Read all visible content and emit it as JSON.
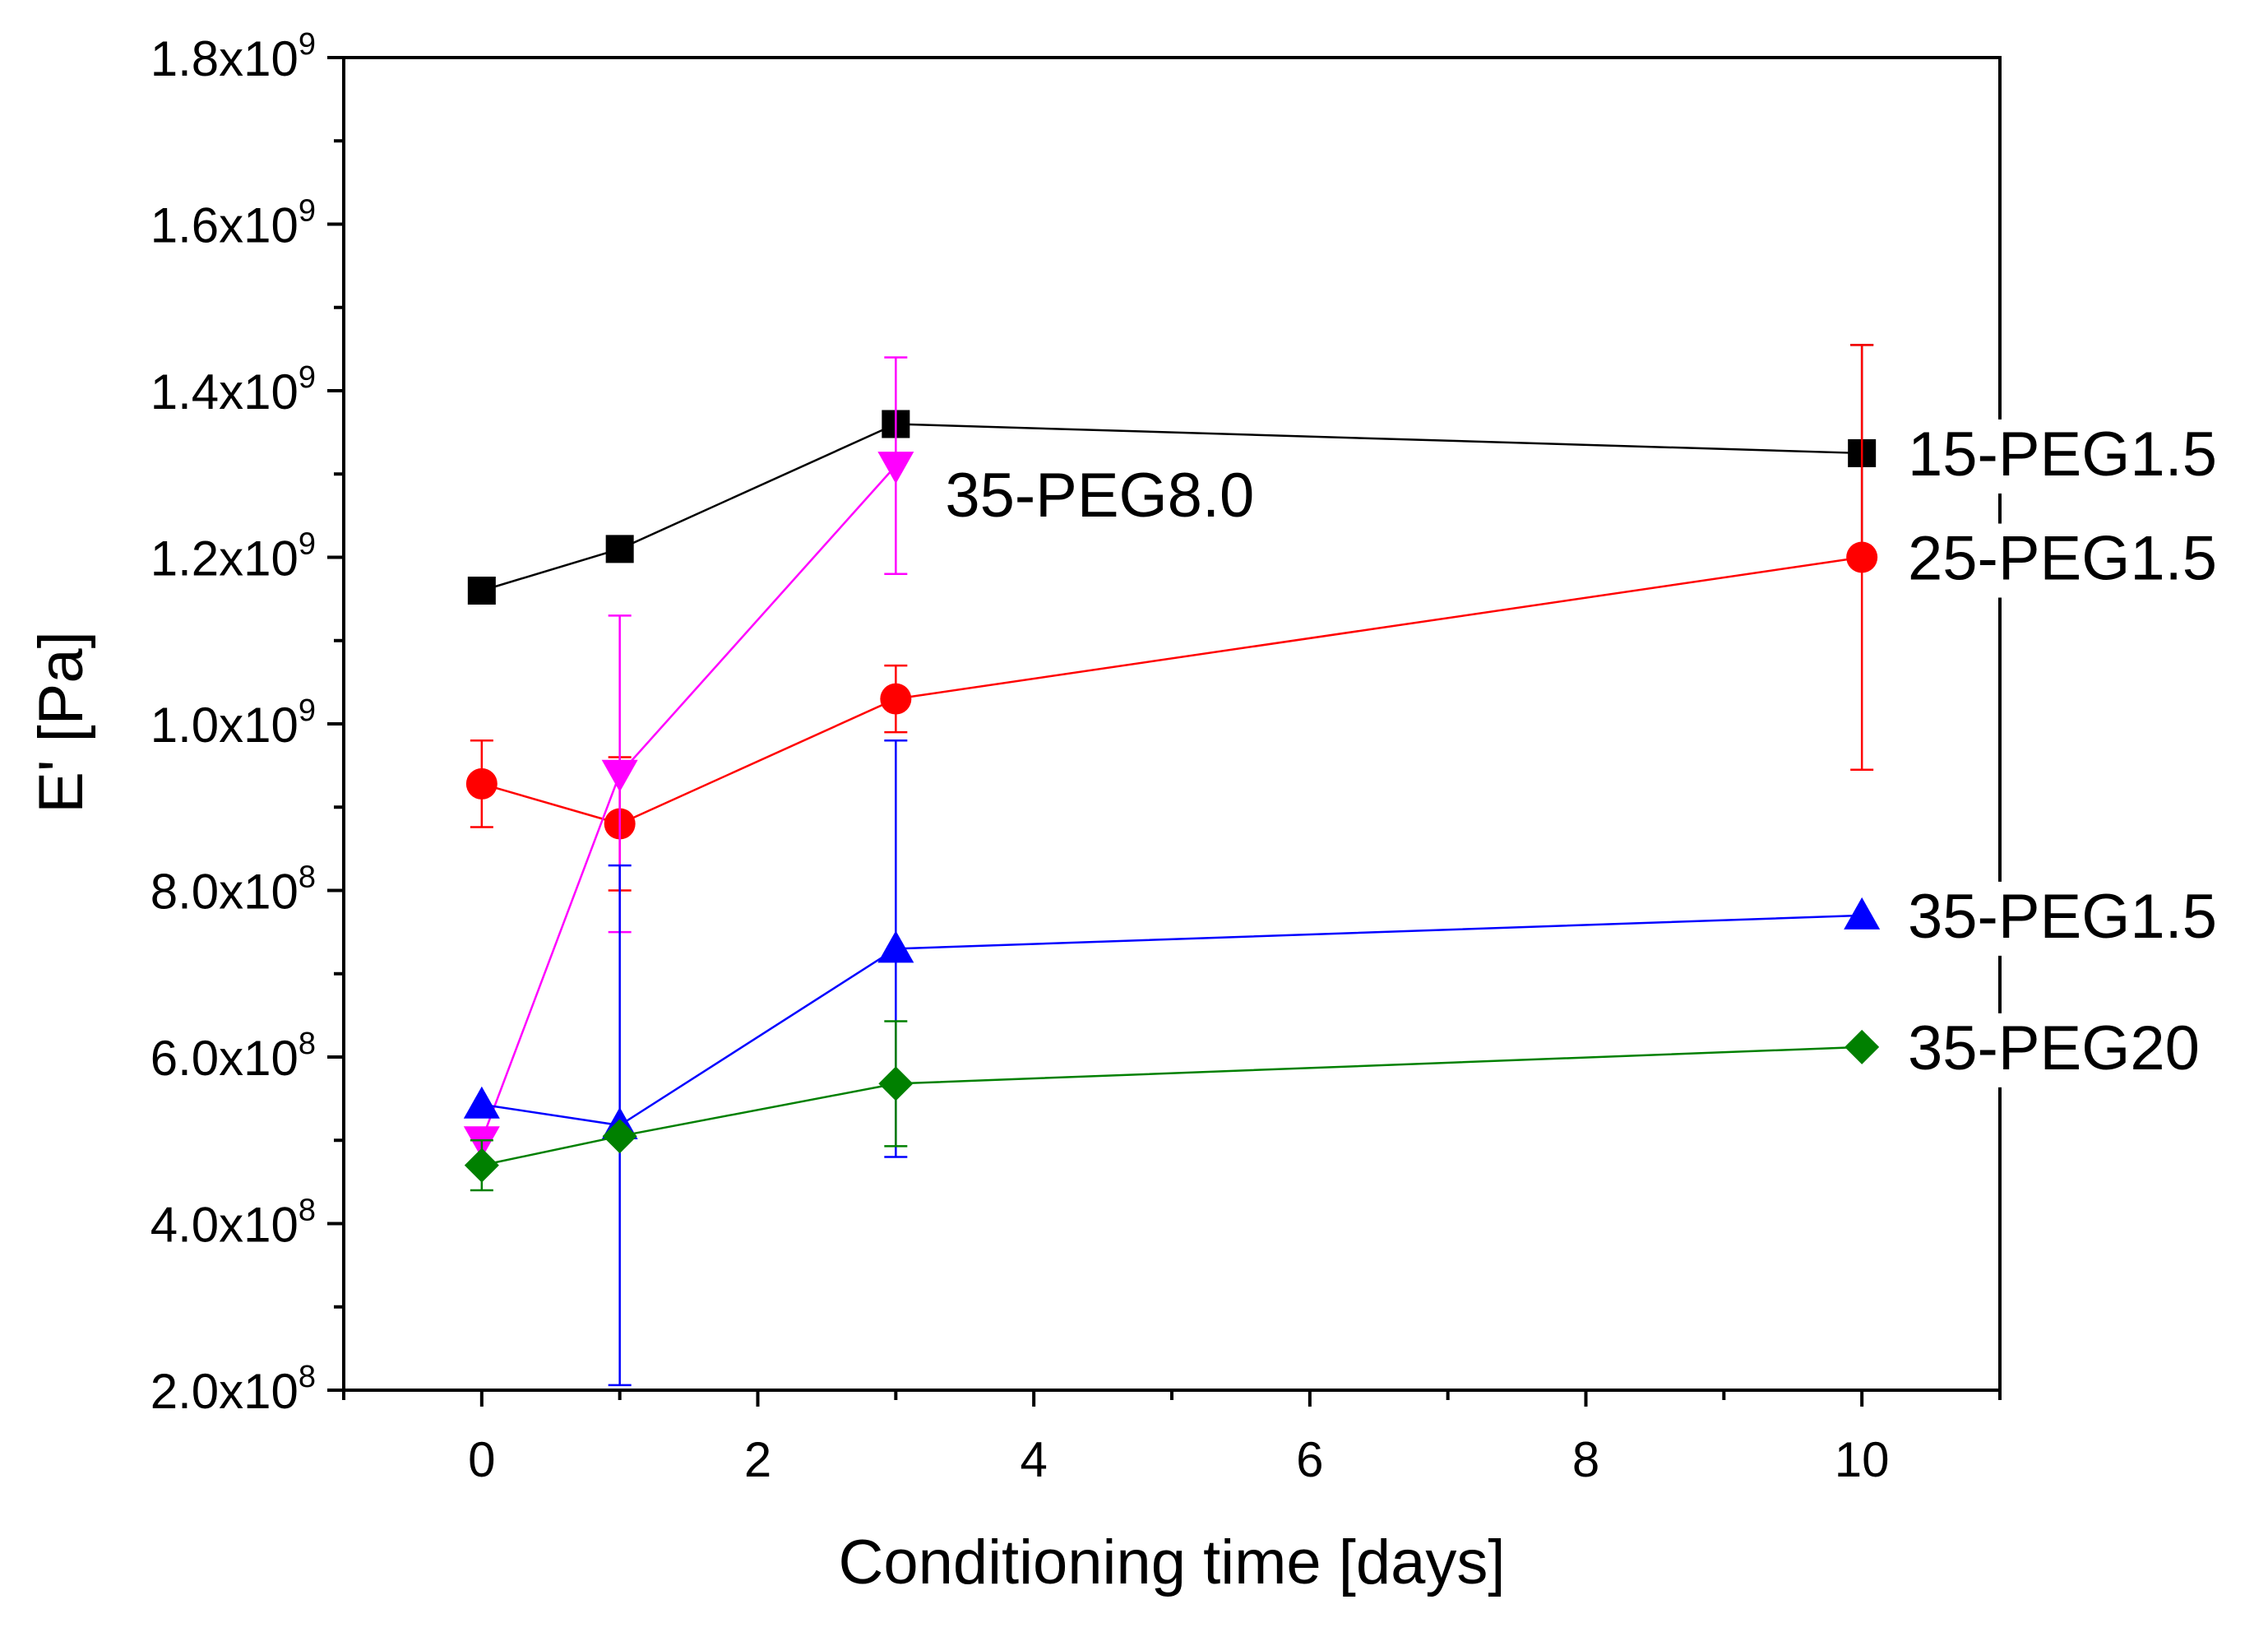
{
  "chart_data": {
    "type": "line",
    "title": "",
    "xlabel": "Conditioning time [days]",
    "ylabel": "E' [Pa]",
    "xlim": [
      -1,
      11
    ],
    "ylim": [
      200000000,
      1800000000
    ],
    "x_ticks": [
      0,
      2,
      4,
      6,
      8,
      10
    ],
    "x_tick_labels": [
      "0",
      "2",
      "4",
      "6",
      "8",
      "10"
    ],
    "y_ticks": [
      {
        "value": 200000000,
        "mantissa": "2.0x10",
        "exp": "8"
      },
      {
        "value": 400000000,
        "mantissa": "4.0x10",
        "exp": "8"
      },
      {
        "value": 600000000,
        "mantissa": "6.0x10",
        "exp": "8"
      },
      {
        "value": 800000000,
        "mantissa": "8.0x10",
        "exp": "8"
      },
      {
        "value": 1000000000,
        "mantissa": "1.0x10",
        "exp": "9"
      },
      {
        "value": 1200000000,
        "mantissa": "1.2x10",
        "exp": "9"
      },
      {
        "value": 1400000000,
        "mantissa": "1.4x10",
        "exp": "9"
      },
      {
        "value": 1600000000,
        "mantissa": "1.6x10",
        "exp": "9"
      },
      {
        "value": 1800000000,
        "mantissa": "1.8x10",
        "exp": "9"
      }
    ],
    "grid": false,
    "series": [
      {
        "name": "15-PEG1.5",
        "color": "#000000",
        "marker": "square",
        "label_position": "right-end",
        "x": [
          0,
          1,
          3,
          10
        ],
        "values": [
          1160000000,
          1210000000,
          1360000000,
          1325000000
        ],
        "error": [
          null,
          null,
          null,
          130000000
        ]
      },
      {
        "name": "25-PEG1.5",
        "color": "#ff0000",
        "marker": "circle",
        "label_position": "right-end",
        "x": [
          0,
          1,
          3,
          10
        ],
        "values": [
          928000000,
          880000000,
          1030000000,
          1200000000
        ],
        "error": [
          52000000,
          80000000,
          40000000,
          255000000
        ]
      },
      {
        "name": "35-PEG8.0",
        "color": "#ff00ff",
        "marker": "triangle-down",
        "label_position": "beside-last-point",
        "x": [
          0,
          1,
          3
        ],
        "values": [
          500000000,
          940000000,
          1310000000
        ],
        "error": [
          null,
          190000000,
          130000000
        ]
      },
      {
        "name": "35-PEG1.5",
        "color": "#0000ff",
        "marker": "triangle-up",
        "label_position": "right-end",
        "x": [
          0,
          1,
          3,
          10
        ],
        "values": [
          543000000,
          518000000,
          730000000,
          770000000
        ],
        "error": [
          null,
          312000000,
          250000000,
          null
        ]
      },
      {
        "name": "35-PEG20",
        "color": "#008000",
        "marker": "diamond",
        "label_position": "right-end",
        "x": [
          0,
          1,
          3,
          10
        ],
        "values": [
          470000000,
          505000000,
          568000000,
          612000000
        ],
        "error": [
          30000000,
          null,
          75000000,
          null
        ]
      }
    ]
  }
}
